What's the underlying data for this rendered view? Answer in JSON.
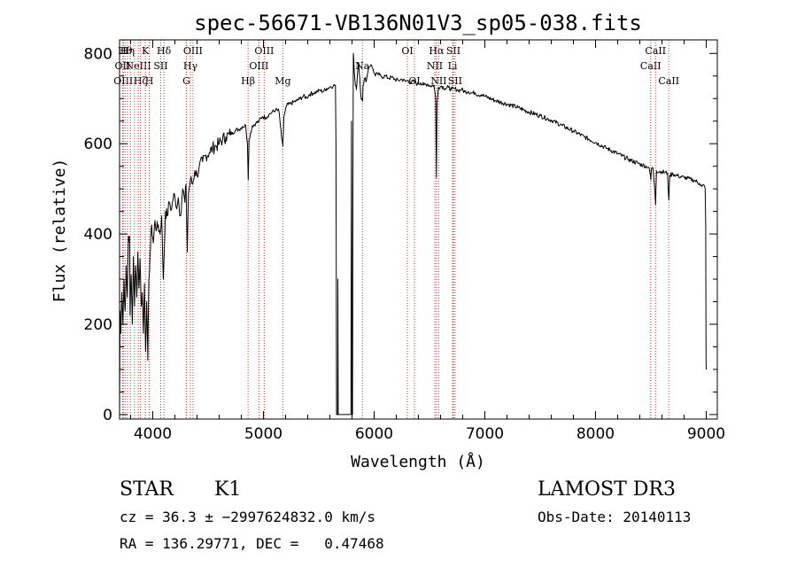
{
  "chart_data": {
    "type": "line",
    "title": "spec-56671-VB136N01V3_sp05-038.fits",
    "xlabel": "Wavelength (Å)",
    "ylabel": "Flux (relative)",
    "xlim": [
      3700,
      9100
    ],
    "ylim": [
      -10,
      830
    ],
    "xticks": [
      4000,
      5000,
      6000,
      7000,
      8000,
      9000
    ],
    "yticks": [
      0,
      200,
      400,
      600,
      800
    ],
    "series": [
      {
        "name": "flux",
        "points": [
          [
            3700,
            0
          ],
          [
            3705,
            230
          ],
          [
            3712,
            180
          ],
          [
            3720,
            270
          ],
          [
            3730,
            200
          ],
          [
            3740,
            300
          ],
          [
            3750,
            230
          ],
          [
            3760,
            330
          ],
          [
            3770,
            260
          ],
          [
            3780,
            395
          ],
          [
            3790,
            395
          ],
          [
            3795,
            220
          ],
          [
            3805,
            310
          ],
          [
            3815,
            200
          ],
          [
            3825,
            350
          ],
          [
            3835,
            240
          ],
          [
            3845,
            330
          ],
          [
            3855,
            260
          ],
          [
            3865,
            360
          ],
          [
            3875,
            280
          ],
          [
            3885,
            345
          ],
          [
            3895,
            240
          ],
          [
            3905,
            270
          ],
          [
            3915,
            180
          ],
          [
            3925,
            290
          ],
          [
            3935,
            140
          ],
          [
            3945,
            250
          ],
          [
            3955,
            120
          ],
          [
            3965,
            300
          ],
          [
            3975,
            350
          ],
          [
            3990,
            420
          ],
          [
            4005,
            380
          ],
          [
            4020,
            430
          ],
          [
            4035,
            410
          ],
          [
            4050,
            420
          ],
          [
            4065,
            400
          ],
          [
            4080,
            440
          ],
          [
            4095,
            300
          ],
          [
            4102,
            350
          ],
          [
            4115,
            450
          ],
          [
            4130,
            440
          ],
          [
            4150,
            470
          ],
          [
            4170,
            455
          ],
          [
            4190,
            490
          ],
          [
            4210,
            460
          ],
          [
            4230,
            480
          ],
          [
            4250,
            440
          ],
          [
            4270,
            500
          ],
          [
            4290,
            470
          ],
          [
            4300,
            510
          ],
          [
            4312,
            360
          ],
          [
            4322,
            490
          ],
          [
            4340,
            520
          ],
          [
            4360,
            510
          ],
          [
            4380,
            540
          ],
          [
            4400,
            530
          ],
          [
            4420,
            550
          ],
          [
            4450,
            560
          ],
          [
            4480,
            575
          ],
          [
            4510,
            580
          ],
          [
            4540,
            590
          ],
          [
            4570,
            595
          ],
          [
            4600,
            600
          ],
          [
            4630,
            610
          ],
          [
            4660,
            615
          ],
          [
            4690,
            620
          ],
          [
            4720,
            625
          ],
          [
            4750,
            630
          ],
          [
            4780,
            632
          ],
          [
            4810,
            638
          ],
          [
            4840,
            640
          ],
          [
            4855,
            600
          ],
          [
            4862,
            520
          ],
          [
            4870,
            610
          ],
          [
            4900,
            640
          ],
          [
            4930,
            645
          ],
          [
            4960,
            650
          ],
          [
            4990,
            660
          ],
          [
            5020,
            658
          ],
          [
            5050,
            665
          ],
          [
            5080,
            670
          ],
          [
            5110,
            675
          ],
          [
            5140,
            672
          ],
          [
            5165,
            610
          ],
          [
            5175,
            595
          ],
          [
            5185,
            660
          ],
          [
            5210,
            685
          ],
          [
            5240,
            688
          ],
          [
            5270,
            692
          ],
          [
            5300,
            695
          ],
          [
            5330,
            700
          ],
          [
            5360,
            705
          ],
          [
            5390,
            702
          ],
          [
            5420,
            710
          ],
          [
            5450,
            712
          ],
          [
            5480,
            715
          ],
          [
            5510,
            718
          ],
          [
            5540,
            716
          ],
          [
            5570,
            722
          ],
          [
            5600,
            726
          ],
          [
            5630,
            728
          ],
          [
            5650,
            730
          ],
          [
            5655,
            600
          ],
          [
            5658,
            250
          ],
          [
            5660,
            0
          ],
          [
            5670,
            0
          ],
          [
            5672,
            300
          ],
          [
            5675,
            0
          ],
          [
            5700,
            0
          ],
          [
            5750,
            0
          ],
          [
            5790,
            0
          ],
          [
            5795,
            650
          ],
          [
            5800,
            0
          ],
          [
            5805,
            0
          ],
          [
            5808,
            500
          ],
          [
            5812,
            800
          ],
          [
            5815,
            790
          ],
          [
            5820,
            760
          ],
          [
            5830,
            730
          ],
          [
            5840,
            720
          ],
          [
            5850,
            760
          ],
          [
            5860,
            780
          ],
          [
            5870,
            745
          ],
          [
            5880,
            705
          ],
          [
            5890,
            700
          ],
          [
            5895,
            695
          ],
          [
            5900,
            730
          ],
          [
            5915,
            745
          ],
          [
            5930,
            740
          ],
          [
            5950,
            770
          ],
          [
            5970,
            775
          ],
          [
            5990,
            765
          ],
          [
            6010,
            750
          ],
          [
            6030,
            755
          ],
          [
            6050,
            752
          ],
          [
            6070,
            748
          ],
          [
            6100,
            750
          ],
          [
            6130,
            745
          ],
          [
            6160,
            747
          ],
          [
            6190,
            742
          ],
          [
            6220,
            740
          ],
          [
            6250,
            743
          ],
          [
            6280,
            738
          ],
          [
            6300,
            740
          ],
          [
            6330,
            735
          ],
          [
            6360,
            738
          ],
          [
            6390,
            732
          ],
          [
            6420,
            735
          ],
          [
            6450,
            730
          ],
          [
            6480,
            732
          ],
          [
            6510,
            728
          ],
          [
            6540,
            730
          ],
          [
            6555,
            700
          ],
          [
            6562,
            525
          ],
          [
            6568,
            690
          ],
          [
            6580,
            725
          ],
          [
            6610,
            728
          ],
          [
            6640,
            722
          ],
          [
            6670,
            725
          ],
          [
            6700,
            720
          ],
          [
            6730,
            722
          ],
          [
            6760,
            718
          ],
          [
            6790,
            720
          ],
          [
            6820,
            715
          ],
          [
            6850,
            716
          ],
          [
            6880,
            712
          ],
          [
            6910,
            713
          ],
          [
            6940,
            708
          ],
          [
            6970,
            709
          ],
          [
            7000,
            705
          ],
          [
            7100,
            695
          ],
          [
            7200,
            688
          ],
          [
            7300,
            680
          ],
          [
            7400,
            670
          ],
          [
            7500,
            662
          ],
          [
            7600,
            652
          ],
          [
            7700,
            640
          ],
          [
            7800,
            628
          ],
          [
            7900,
            615
          ],
          [
            8000,
            603
          ],
          [
            8100,
            590
          ],
          [
            8200,
            578
          ],
          [
            8300,
            565
          ],
          [
            8400,
            555
          ],
          [
            8480,
            548
          ],
          [
            8495,
            530
          ],
          [
            8500,
            520
          ],
          [
            8505,
            545
          ],
          [
            8520,
            545
          ],
          [
            8535,
            500
          ],
          [
            8542,
            465
          ],
          [
            8550,
            540
          ],
          [
            8600,
            538
          ],
          [
            8650,
            535
          ],
          [
            8655,
            505
          ],
          [
            8662,
            475
          ],
          [
            8670,
            530
          ],
          [
            8700,
            533
          ],
          [
            8750,
            528
          ],
          [
            8800,
            525
          ],
          [
            8850,
            522
          ],
          [
            8900,
            518
          ],
          [
            8940,
            512
          ],
          [
            8960,
            505
          ],
          [
            8980,
            508
          ],
          [
            8990,
            500
          ],
          [
            8995,
            420
          ],
          [
            8998,
            120
          ],
          [
            9000,
            100
          ]
        ]
      }
    ],
    "lines": [
      {
        "wl": 3727,
        "label": "OII",
        "row": 1
      },
      {
        "wl": 3734,
        "label": "OIII",
        "row": 2
      },
      {
        "wl": 3750,
        "label": "Hθ",
        "row": 0
      },
      {
        "wl": 3771,
        "label": "Hη",
        "row": 0
      },
      {
        "wl": 3798,
        "label": "",
        "row": -1
      },
      {
        "wl": 3835,
        "label": "",
        "row": -1
      },
      {
        "wl": 3869,
        "label": "NeIII",
        "row": 1
      },
      {
        "wl": 3889,
        "label": "Hζ",
        "row": 2
      },
      {
        "wl": 3933,
        "label": "K",
        "row": 0
      },
      {
        "wl": 3968,
        "label": "H",
        "row": 2
      },
      {
        "wl": 4072,
        "label": "SII",
        "row": 1
      },
      {
        "wl": 4101,
        "label": "Hδ",
        "row": 0
      },
      {
        "wl": 4304,
        "label": "G",
        "row": 2
      },
      {
        "wl": 4340,
        "label": "Hγ",
        "row": 1
      },
      {
        "wl": 4363,
        "label": "OIII",
        "row": 0
      },
      {
        "wl": 4861,
        "label": "Hβ",
        "row": 2
      },
      {
        "wl": 4959,
        "label": "OIII",
        "row": 1
      },
      {
        "wl": 5007,
        "label": "OIII",
        "row": 0
      },
      {
        "wl": 5175,
        "label": "Mg",
        "row": 2
      },
      {
        "wl": 5894,
        "label": "Na",
        "row": 1
      },
      {
        "wl": 6300,
        "label": "OI",
        "row": 0
      },
      {
        "wl": 6364,
        "label": "OI",
        "row": 2
      },
      {
        "wl": 6548,
        "label": "NII",
        "row": 1
      },
      {
        "wl": 6563,
        "label": "Hα",
        "row": 0
      },
      {
        "wl": 6583,
        "label": "NII",
        "row": 2
      },
      {
        "wl": 6708,
        "label": "Li",
        "row": 1
      },
      {
        "wl": 6716,
        "label": "SII",
        "row": 0
      },
      {
        "wl": 6731,
        "label": "SII",
        "row": 2
      },
      {
        "wl": 8498,
        "label": "CaII",
        "row": 1
      },
      {
        "wl": 8542,
        "label": "CaII",
        "row": 0
      },
      {
        "wl": 8662,
        "label": "CaII",
        "row": 2
      }
    ]
  },
  "info": {
    "class": "STAR",
    "subclass": "K1",
    "survey": "LAMOST DR3",
    "cz": "cz = 36.3 ± −2997624832.0 km/s",
    "obsdate": "Obs-Date: 20140113",
    "radec": "RA = 136.29771, DEC =   0.47468"
  }
}
